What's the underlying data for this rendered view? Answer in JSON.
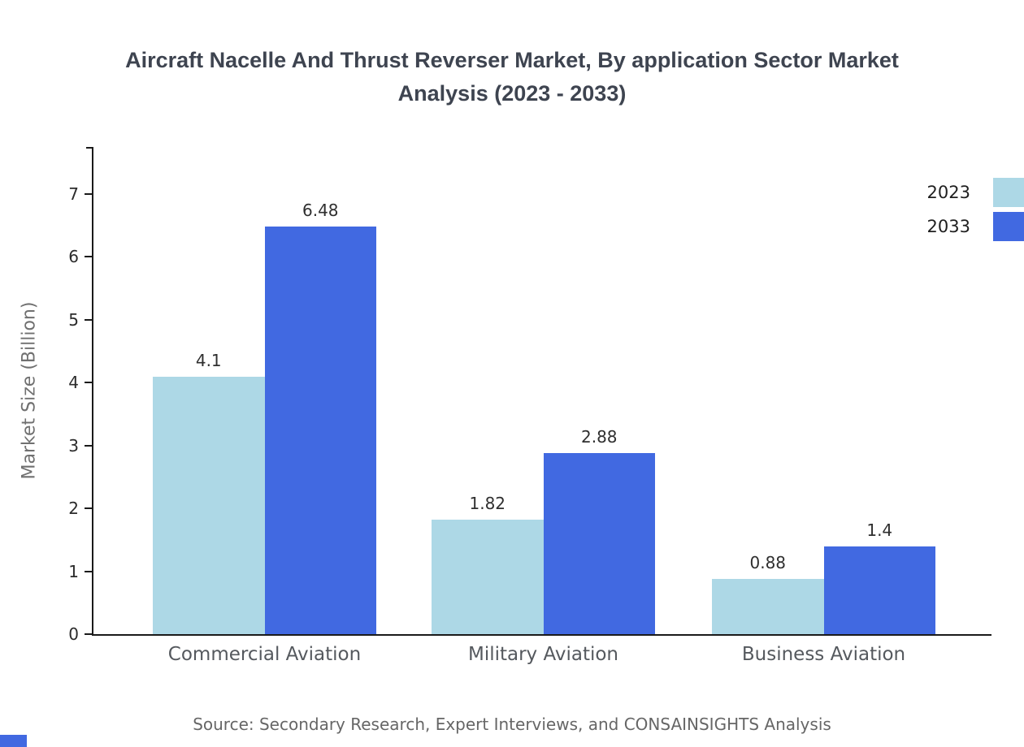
{
  "chart_data": {
    "type": "bar",
    "title": "Aircraft Nacelle And Thrust Reverser Market, By application Sector Market Analysis (2023 - 2033)",
    "ylabel": "Market Size (Billion)",
    "xlabel": "",
    "categories": [
      "Commercial Aviation",
      "Military Aviation",
      "Business Aviation"
    ],
    "series": [
      {
        "name": "2023",
        "color": "#add8e6",
        "values": [
          4.1,
          1.82,
          0.88
        ]
      },
      {
        "name": "2033",
        "color": "#4169e1",
        "values": [
          6.48,
          2.88,
          1.4
        ]
      }
    ],
    "ylim": [
      0,
      7.75
    ],
    "yticks": [
      0,
      1,
      2,
      3,
      4,
      5,
      6,
      7
    ],
    "grid": false,
    "legend_position": "top-right",
    "value_labels": true,
    "source": "Source: Secondary Research, Expert Interviews, and CONSAINSIGHTS Analysis"
  }
}
